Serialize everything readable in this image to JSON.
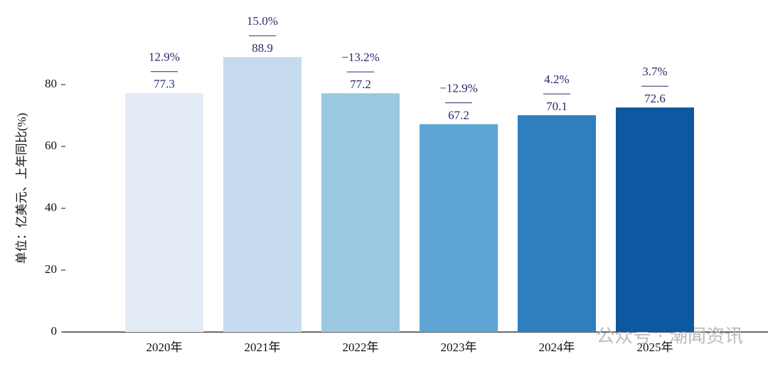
{
  "chart_data": {
    "type": "bar",
    "y_label": "单位：亿美元、上年同比(%)",
    "categories": [
      "2020年",
      "2021年",
      "2022年",
      "2023年",
      "2024年",
      "2025年"
    ],
    "values": [
      77.3,
      88.9,
      77.2,
      67.2,
      70.1,
      72.6
    ],
    "colors": [
      "#e3ecf7",
      "#c6dbef",
      "#9ac8e0",
      "#5da5d2",
      "#2f7ebd",
      "#0d58a0"
    ],
    "growth": {
      "values": [
        12.9,
        15.0,
        -13.2,
        -12.9,
        4.2,
        3.7
      ],
      "value_labels": [
        "12.9%",
        "15.0%",
        "−13.2%",
        "−12.9%",
        "4.2%",
        "3.7%"
      ]
    },
    "ylim": [
      0,
      95
    ],
    "yticks": [
      0,
      20,
      40,
      60,
      80
    ],
    "watermark": "公众号 · 潮闻资讯"
  }
}
